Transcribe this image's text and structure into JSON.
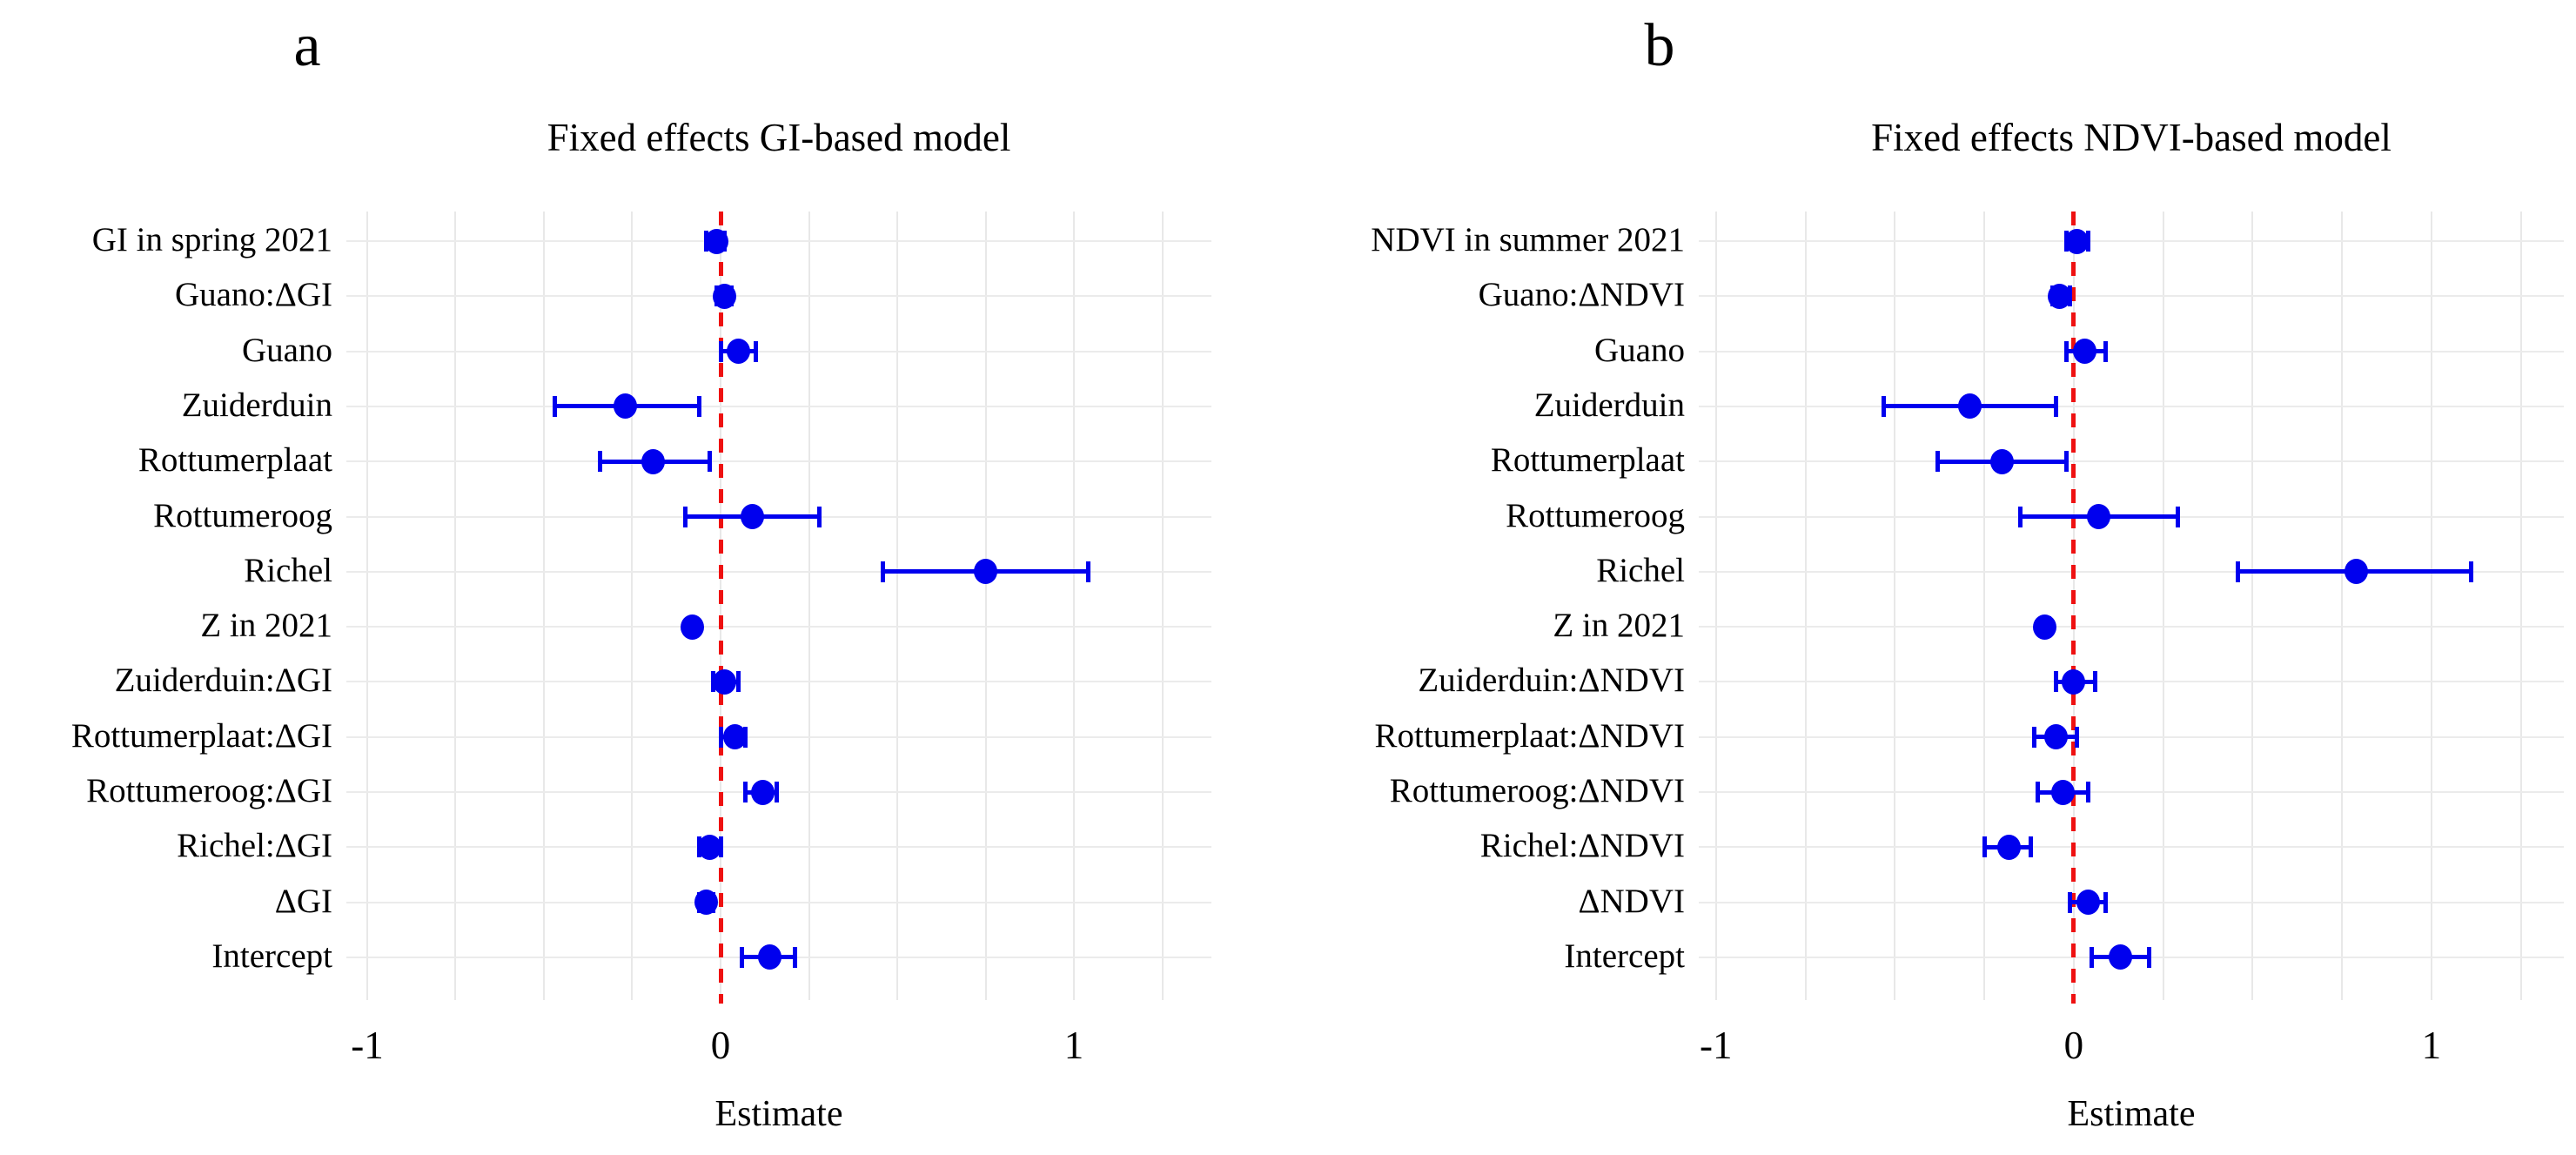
{
  "figure": {
    "background": "#ffffff",
    "point_color": "#0000ee",
    "zero_line_color": "#ee1111",
    "grid_color": "#e8e8e8"
  },
  "chart_data": [
    {
      "type": "scatter",
      "subtype": "forest-plot",
      "panel_label": "a",
      "title": "Fixed effects GI-based model",
      "xlabel": "Estimate",
      "xlim": [
        -1.059,
        1.389
      ],
      "grid_step": 0.25,
      "grid_range": [
        -1.0,
        1.25
      ],
      "zero_line": 0,
      "grid": true,
      "legend": false,
      "xticks": [
        -1,
        0,
        1
      ],
      "xtick_labels": [
        "-1",
        "0",
        "1"
      ],
      "categories": [
        "GI in spring 2021",
        "Guano:ΔGI",
        "Guano",
        "Zuiderduin",
        "Rottumerplaat",
        "Rottumeroog",
        "Richel",
        "Z in 2021",
        "Zuiderduin:ΔGI",
        "Rottumerplaat:ΔGI",
        "Rottumeroog:ΔGI",
        "Richel:ΔGI",
        "ΔGI",
        "Intercept"
      ],
      "estimates": [
        -0.01,
        0.01,
        0.05,
        -0.27,
        -0.19,
        0.09,
        0.75,
        -0.08,
        0.01,
        0.04,
        0.12,
        -0.03,
        -0.04,
        0.14
      ],
      "ci_low": [
        -0.04,
        -0.01,
        0.0,
        -0.47,
        -0.34,
        -0.1,
        0.46,
        -0.09,
        -0.02,
        0.0,
        0.07,
        -0.06,
        -0.06,
        0.06
      ],
      "ci_high": [
        0.01,
        0.03,
        0.1,
        -0.06,
        -0.03,
        0.28,
        1.04,
        -0.07,
        0.05,
        0.07,
        0.16,
        0.0,
        -0.02,
        0.21
      ]
    },
    {
      "type": "scatter",
      "subtype": "forest-plot",
      "panel_label": "b",
      "title": "Fixed effects NDVI-based model",
      "xlabel": "Estimate",
      "xlim": [
        -1.048,
        1.37
      ],
      "grid_step": 0.25,
      "grid_range": [
        -1.0,
        1.25
      ],
      "zero_line": 0,
      "grid": true,
      "legend": false,
      "xticks": [
        -1,
        0,
        1
      ],
      "xtick_labels": [
        "-1",
        "0",
        "1"
      ],
      "categories": [
        "NDVI in summer 2021",
        "Guano:ΔNDVI",
        "Guano",
        "Zuiderduin",
        "Rottumerplaat",
        "Rottumeroog",
        "Richel",
        "Z in 2021",
        "Zuiderduin:ΔNDVI",
        "Rottumerplaat:ΔNDVI",
        "Rottumeroog:ΔNDVI",
        "Richel:ΔNDVI",
        "ΔNDVI",
        "Intercept"
      ],
      "estimates": [
        0.01,
        -0.04,
        0.03,
        -0.29,
        -0.2,
        0.07,
        0.79,
        -0.08,
        0.0,
        -0.05,
        -0.03,
        -0.18,
        0.04,
        0.13
      ],
      "ci_low": [
        -0.02,
        -0.06,
        -0.02,
        -0.53,
        -0.38,
        -0.15,
        0.46,
        -0.09,
        -0.05,
        -0.11,
        -0.1,
        -0.25,
        -0.01,
        0.05
      ],
      "ci_high": [
        0.04,
        -0.01,
        0.09,
        -0.05,
        -0.02,
        0.29,
        1.11,
        -0.07,
        0.06,
        0.01,
        0.04,
        -0.12,
        0.09,
        0.21
      ]
    }
  ]
}
